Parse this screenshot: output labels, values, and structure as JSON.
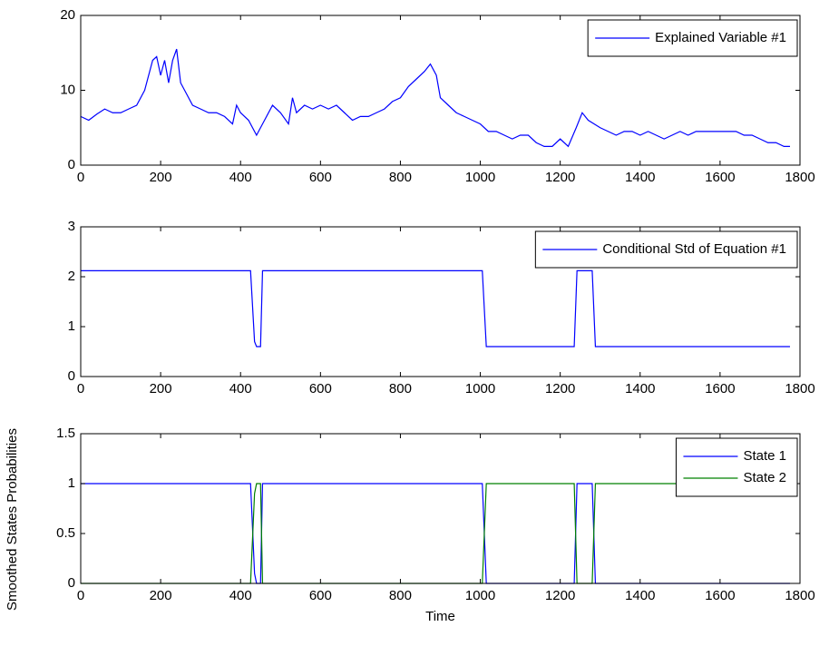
{
  "chart_data": [
    {
      "type": "line",
      "x": [
        0,
        20,
        40,
        60,
        80,
        100,
        120,
        140,
        160,
        180,
        190,
        200,
        210,
        220,
        230,
        240,
        250,
        260,
        280,
        300,
        320,
        340,
        360,
        380,
        390,
        400,
        420,
        440,
        460,
        480,
        500,
        520,
        530,
        540,
        560,
        580,
        600,
        620,
        640,
        660,
        680,
        700,
        720,
        740,
        760,
        780,
        800,
        820,
        840,
        860,
        875,
        890,
        900,
        920,
        940,
        960,
        980,
        1000,
        1020,
        1040,
        1060,
        1080,
        1100,
        1120,
        1140,
        1160,
        1180,
        1200,
        1220,
        1240,
        1255,
        1270,
        1300,
        1320,
        1340,
        1360,
        1380,
        1400,
        1420,
        1440,
        1460,
        1480,
        1500,
        1520,
        1540,
        1560,
        1580,
        1600,
        1620,
        1640,
        1660,
        1680,
        1700,
        1720,
        1740,
        1760,
        1775
      ],
      "series": [
        {
          "name": "Explained Variable #1",
          "color": "#0000ff",
          "values": [
            6.5,
            6,
            6.8,
            7.5,
            7,
            7,
            7.5,
            8,
            10,
            14,
            14.5,
            12,
            14,
            11,
            14,
            15.5,
            11,
            10,
            8,
            7.5,
            7,
            7,
            6.5,
            5.5,
            8,
            7,
            6,
            4,
            6,
            8,
            7,
            5.5,
            9,
            7,
            8,
            7.5,
            8,
            7.5,
            8,
            7,
            6,
            6.5,
            6.5,
            7,
            7.5,
            8.5,
            9,
            10.5,
            11.5,
            12.5,
            13.5,
            12,
            9,
            8,
            7,
            6.5,
            6,
            5.5,
            4.5,
            4.5,
            4,
            3.5,
            4,
            4,
            3,
            2.5,
            2.5,
            3.5,
            2.5,
            5,
            7,
            6,
            5,
            4.5,
            4,
            4.5,
            4.5,
            4,
            4.5,
            4,
            3.5,
            4,
            4.5,
            4,
            4.5,
            4.5,
            4.5,
            4.5,
            4.5,
            4.5,
            4,
            4,
            3.5,
            3,
            3,
            2.5,
            2.5
          ]
        }
      ],
      "xlim": [
        0,
        1800
      ],
      "xticks": [
        0,
        200,
        400,
        600,
        800,
        1000,
        1200,
        1400,
        1600,
        1800
      ],
      "ylim": [
        0,
        20
      ],
      "yticks": [
        0,
        10,
        20
      ],
      "legend": "upper right"
    },
    {
      "type": "line",
      "x": [
        0,
        425,
        435,
        440,
        450,
        455,
        1005,
        1015,
        1235,
        1242,
        1280,
        1288,
        1775
      ],
      "series": [
        {
          "name": "Conditional Std of Equation #1",
          "color": "#0000ff",
          "values": [
            2.12,
            2.12,
            0.7,
            0.6,
            0.6,
            2.12,
            2.12,
            0.6,
            0.6,
            2.12,
            2.12,
            0.6,
            0.6
          ]
        }
      ],
      "xlim": [
        0,
        1800
      ],
      "xticks": [
        0,
        200,
        400,
        600,
        800,
        1000,
        1200,
        1400,
        1600,
        1800
      ],
      "ylim": [
        0,
        3
      ],
      "yticks": [
        0,
        1,
        2,
        3
      ],
      "legend": "upper right"
    },
    {
      "type": "line",
      "x": [
        0,
        425,
        435,
        440,
        450,
        455,
        1005,
        1015,
        1235,
        1242,
        1280,
        1288,
        1775
      ],
      "series": [
        {
          "name": "State 1",
          "color": "#0000ff",
          "values": [
            1,
            1,
            0.1,
            0,
            0,
            1,
            1,
            0,
            0,
            1,
            1,
            0,
            0
          ]
        },
        {
          "name": "State 2",
          "color": "#008000",
          "values": [
            0,
            0,
            0.9,
            1,
            1,
            0,
            0,
            1,
            1,
            0,
            0,
            1,
            1
          ]
        }
      ],
      "xlim": [
        0,
        1800
      ],
      "xticks": [
        0,
        200,
        400,
        600,
        800,
        1000,
        1200,
        1400,
        1600,
        1800
      ],
      "ylim": [
        0,
        1.5
      ],
      "yticks": [
        0,
        0.5,
        1,
        1.5
      ],
      "legend": "upper right",
      "xlabel": "Time",
      "ylabel": "Smoothed States Probabilities"
    }
  ]
}
